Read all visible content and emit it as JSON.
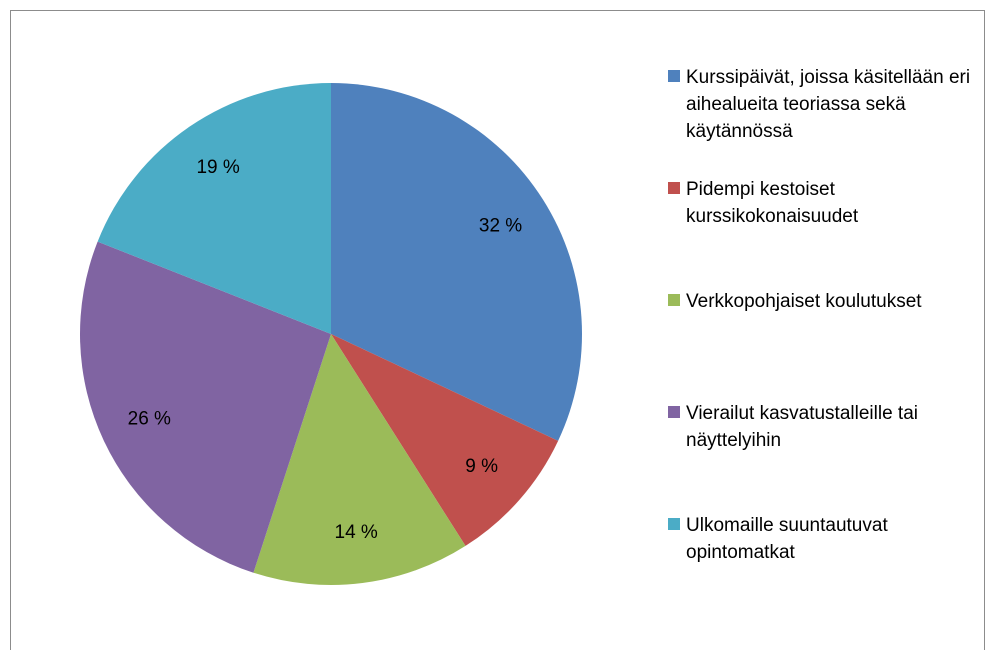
{
  "chart_data": {
    "type": "pie",
    "categories": [
      "Kurssipäivät, joissa käsitellään eri aihealueita teoriassa sekä käytännössä",
      "Pidempi kestoiset kurssikokonaisuudet",
      "Verkkopohjaiset koulutukset",
      "Vierailut kasvatustalleille tai näyttelyihin",
      "Ulkomaille suuntautuvat opintomatkat"
    ],
    "values": [
      32,
      9,
      14,
      26,
      19
    ],
    "value_labels": [
      "32 %",
      "9 %",
      "14 %",
      "26 %",
      "19 %"
    ],
    "colors": [
      "#4f81bd",
      "#c0504d",
      "#9bbb59",
      "#8064a2",
      "#4bacc6"
    ],
    "legend": "right"
  }
}
